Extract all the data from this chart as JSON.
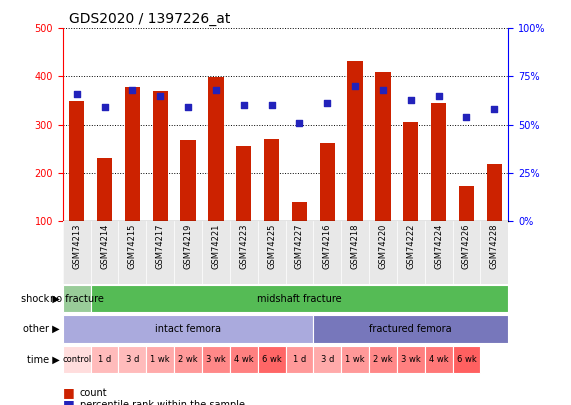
{
  "title": "GDS2020 / 1397226_at",
  "samples": [
    "GSM74213",
    "GSM74214",
    "GSM74215",
    "GSM74217",
    "GSM74219",
    "GSM74221",
    "GSM74223",
    "GSM74225",
    "GSM74227",
    "GSM74216",
    "GSM74218",
    "GSM74220",
    "GSM74222",
    "GSM74224",
    "GSM74226",
    "GSM74228"
  ],
  "counts": [
    348,
    231,
    378,
    370,
    268,
    399,
    256,
    270,
    138,
    262,
    432,
    410,
    305,
    345,
    172,
    218
  ],
  "percentiles": [
    66,
    59,
    68,
    65,
    59,
    68,
    60,
    60,
    51,
    61,
    70,
    68,
    63,
    65,
    54,
    58
  ],
  "ylim_left": [
    100,
    500
  ],
  "ylim_right": [
    0,
    100
  ],
  "yticks_left": [
    100,
    200,
    300,
    400,
    500
  ],
  "yticks_right": [
    0,
    25,
    50,
    75,
    100
  ],
  "bar_color": "#CC2200",
  "dot_color": "#2222BB",
  "shock_labels": [
    {
      "text": "no fracture",
      "start": 0,
      "end": 1,
      "color": "#99CC99"
    },
    {
      "text": "midshaft fracture",
      "start": 1,
      "end": 16,
      "color": "#55BB55"
    }
  ],
  "other_labels": [
    {
      "text": "intact femora",
      "start": 0,
      "end": 9,
      "color": "#AAAADD"
    },
    {
      "text": "fractured femora",
      "start": 9,
      "end": 16,
      "color": "#7777BB"
    }
  ],
  "time_labels": [
    {
      "text": "control",
      "start": 0,
      "end": 1,
      "color": "#FFDDDD"
    },
    {
      "text": "1 d",
      "start": 1,
      "end": 2,
      "color": "#FFBBBB"
    },
    {
      "text": "3 d",
      "start": 2,
      "end": 3,
      "color": "#FFBBBB"
    },
    {
      "text": "1 wk",
      "start": 3,
      "end": 4,
      "color": "#FFAAAA"
    },
    {
      "text": "2 wk",
      "start": 4,
      "end": 5,
      "color": "#FF9999"
    },
    {
      "text": "3 wk",
      "start": 5,
      "end": 6,
      "color": "#FF8888"
    },
    {
      "text": "4 wk",
      "start": 6,
      "end": 7,
      "color": "#FF8080"
    },
    {
      "text": "6 wk",
      "start": 7,
      "end": 8,
      "color": "#FF6666"
    },
    {
      "text": "1 d",
      "start": 8,
      "end": 9,
      "color": "#FF9999"
    },
    {
      "text": "3 d",
      "start": 9,
      "end": 10,
      "color": "#FFAAAA"
    },
    {
      "text": "1 wk",
      "start": 10,
      "end": 11,
      "color": "#FF9999"
    },
    {
      "text": "2 wk",
      "start": 11,
      "end": 12,
      "color": "#FF8888"
    },
    {
      "text": "3 wk",
      "start": 12,
      "end": 13,
      "color": "#FF8080"
    },
    {
      "text": "4 wk",
      "start": 13,
      "end": 14,
      "color": "#FF7777"
    },
    {
      "text": "6 wk",
      "start": 14,
      "end": 15,
      "color": "#FF6060"
    }
  ],
  "row_labels": [
    "shock",
    "other",
    "time"
  ],
  "tick_label_fontsize": 7,
  "sample_label_fontsize": 6,
  "row_label_fontsize": 7,
  "title_fontsize": 10,
  "legend_fontsize": 7
}
